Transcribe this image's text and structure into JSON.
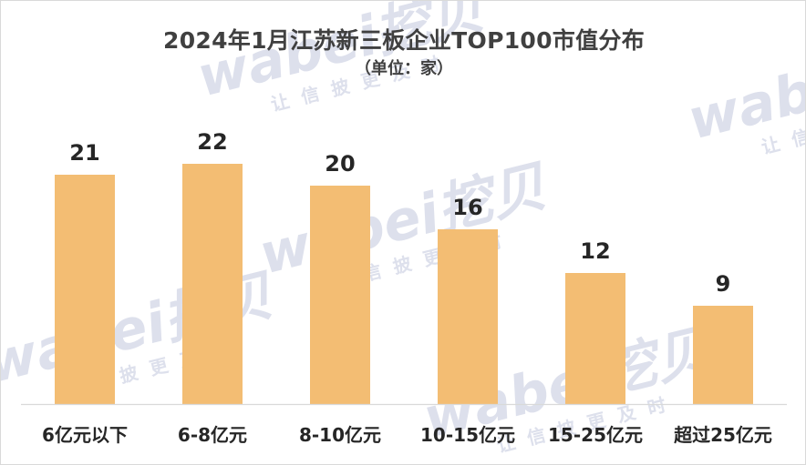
{
  "chart_data": {
    "type": "bar",
    "title": "2024年1月江苏新三板企业TOP100市值分布",
    "subtitle": "（单位：家）",
    "categories": [
      "6亿元以下",
      "6-8亿元",
      "8-10亿元",
      "10-15亿元",
      "15-25亿元",
      "超过25亿元"
    ],
    "values": [
      21,
      22,
      20,
      16,
      12,
      9
    ],
    "xlabel": "",
    "ylabel": "",
    "ylim": [
      0,
      27
    ],
    "grid": false,
    "legend": "none",
    "bar_color": "#f3bd73",
    "axis_color": "#d9d9d9",
    "label_color": "#262626"
  },
  "watermark": {
    "brand": "wabei挖贝",
    "slogan": "让信披更及时",
    "color": "#dde0ec"
  }
}
